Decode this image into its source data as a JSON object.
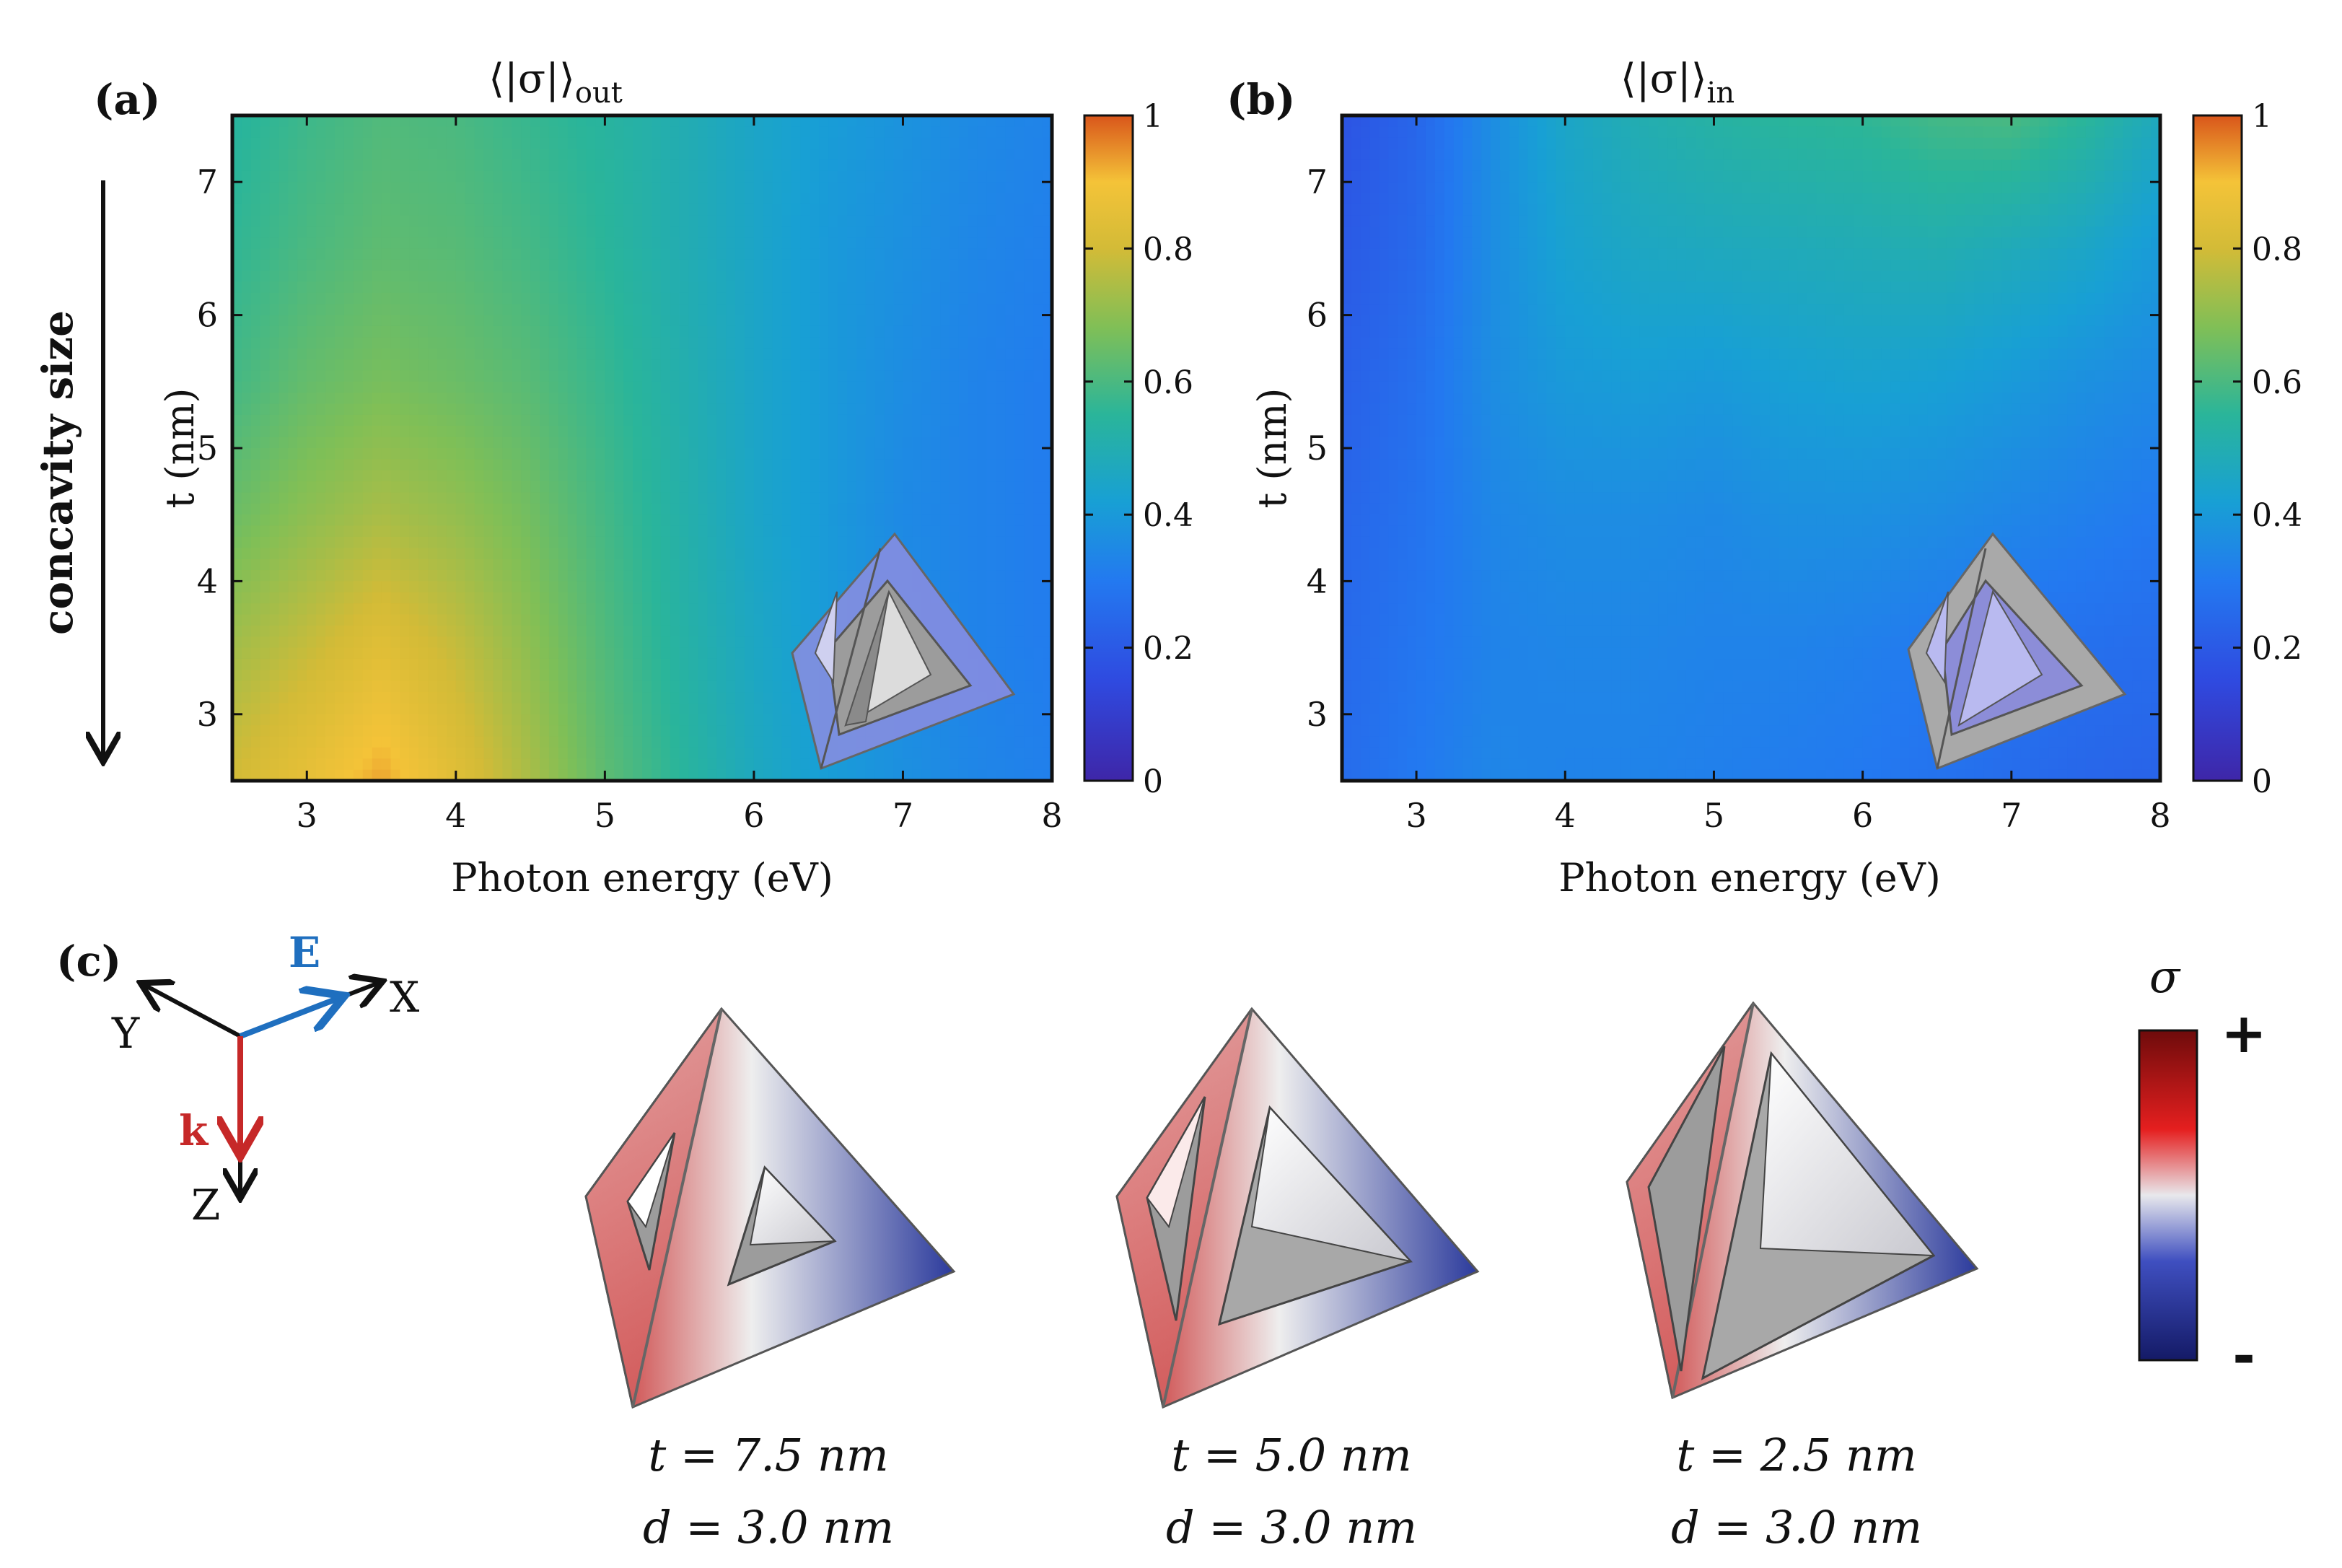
{
  "panel_a": {
    "label": "(a)",
    "title": "⟨|σ|⟩",
    "title_sub": "out",
    "side_label": "concavity size"
  },
  "panel_b": {
    "label": "(b)",
    "title": "⟨|σ|⟩",
    "title_sub": "in"
  },
  "panel_c": {
    "label": "(c)",
    "axes": {
      "x": "X",
      "y": "Y",
      "z": "Z",
      "e": "E",
      "k": "k"
    },
    "colorbar": {
      "title": "σ",
      "plus": "+",
      "minus": "-"
    },
    "shapes": [
      {
        "t": "t = 7.5 nm",
        "d": "d = 3.0 nm"
      },
      {
        "t": "t = 5.0 nm",
        "d": "d = 3.0 nm"
      },
      {
        "t": "t = 2.5 nm",
        "d": "d = 3.0 nm"
      }
    ]
  },
  "colors": {
    "k_arrow": "#c62828",
    "e_arrow": "#1f6fbf",
    "sigma_plus": "#8b0a0a",
    "sigma_minus": "#1a237e"
  },
  "chart_data": [
    {
      "type": "heatmap",
      "title": "⟨|σ|⟩out",
      "xlabel": "Photon energy (eV)",
      "ylabel": "t (nm)",
      "xlim": [
        2.5,
        8
      ],
      "ylim": [
        2.5,
        7.5
      ],
      "xticks": [
        "3",
        "4",
        "5",
        "6",
        "7",
        "8"
      ],
      "yticks": [
        "3",
        "4",
        "5",
        "6",
        "7"
      ],
      "colorbar": {
        "range": [
          0,
          1
        ],
        "ticks": [
          "0",
          "0.2",
          "0.4",
          "0.6",
          "0.8",
          "1"
        ],
        "colormap": "parula"
      },
      "x": [
        2.5,
        3.0,
        3.5,
        4.0,
        4.5,
        5.0,
        5.5,
        6.0,
        6.5,
        7.0,
        7.5,
        8.0
      ],
      "y": [
        2.5,
        3.5,
        4.5,
        5.5,
        6.5,
        7.5
      ],
      "z": [
        [
          0.8,
          0.86,
          0.93,
          0.84,
          0.74,
          0.63,
          0.55,
          0.47,
          0.41,
          0.37,
          0.34,
          0.32
        ],
        [
          0.73,
          0.78,
          0.84,
          0.78,
          0.7,
          0.61,
          0.53,
          0.46,
          0.4,
          0.36,
          0.33,
          0.31
        ],
        [
          0.65,
          0.7,
          0.74,
          0.71,
          0.66,
          0.59,
          0.52,
          0.45,
          0.4,
          0.35,
          0.33,
          0.31
        ],
        [
          0.59,
          0.64,
          0.67,
          0.65,
          0.62,
          0.57,
          0.51,
          0.45,
          0.4,
          0.36,
          0.33,
          0.31
        ],
        [
          0.56,
          0.6,
          0.63,
          0.62,
          0.59,
          0.55,
          0.5,
          0.45,
          0.4,
          0.37,
          0.34,
          0.32
        ],
        [
          0.54,
          0.58,
          0.61,
          0.6,
          0.57,
          0.54,
          0.5,
          0.45,
          0.41,
          0.38,
          0.35,
          0.33
        ]
      ]
    },
    {
      "type": "heatmap",
      "title": "⟨|σ|⟩in",
      "xlabel": "Photon energy (eV)",
      "ylabel": "t (nm)",
      "xlim": [
        2.5,
        8
      ],
      "ylim": [
        2.5,
        7.5
      ],
      "xticks": [
        "3",
        "4",
        "5",
        "6",
        "7",
        "8"
      ],
      "yticks": [
        "3",
        "4",
        "5",
        "6",
        "7"
      ],
      "colorbar": {
        "range": [
          0,
          1
        ],
        "ticks": [
          "0",
          "0.2",
          "0.4",
          "0.6",
          "0.8",
          "1"
        ],
        "colormap": "parula"
      },
      "x": [
        2.5,
        3.0,
        3.5,
        4.0,
        4.5,
        5.0,
        5.5,
        6.0,
        6.5,
        7.0,
        7.5,
        8.0
      ],
      "y": [
        2.5,
        3.5,
        4.5,
        5.5,
        6.5,
        7.5
      ],
      "z": [
        [
          0.26,
          0.3,
          0.34,
          0.33,
          0.33,
          0.32,
          0.31,
          0.3,
          0.28,
          0.26,
          0.24,
          0.23
        ],
        [
          0.25,
          0.29,
          0.33,
          0.34,
          0.34,
          0.33,
          0.33,
          0.32,
          0.3,
          0.28,
          0.27,
          0.26
        ],
        [
          0.24,
          0.28,
          0.34,
          0.36,
          0.36,
          0.35,
          0.37,
          0.37,
          0.36,
          0.34,
          0.32,
          0.3
        ],
        [
          0.22,
          0.27,
          0.36,
          0.4,
          0.41,
          0.4,
          0.42,
          0.43,
          0.42,
          0.4,
          0.37,
          0.35
        ],
        [
          0.2,
          0.25,
          0.36,
          0.43,
          0.46,
          0.47,
          0.48,
          0.49,
          0.5,
          0.48,
          0.45,
          0.4
        ],
        [
          0.18,
          0.24,
          0.36,
          0.45,
          0.5,
          0.53,
          0.55,
          0.56,
          0.59,
          0.6,
          0.55,
          0.47
        ]
      ]
    }
  ]
}
